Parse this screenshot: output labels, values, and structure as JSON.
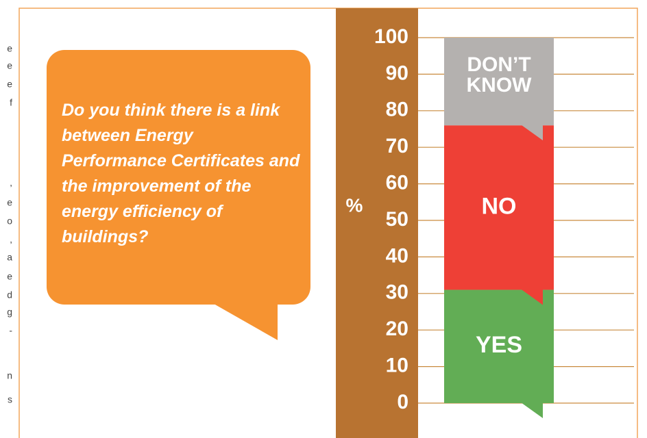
{
  "chart_data": {
    "type": "stacked-bar",
    "title": "Do you think there is a link between Energy Performance Certificates and the improvement of the energy efficiency of buildings?",
    "ylabel": "%",
    "series": [
      {
        "name": "YES",
        "color": "#62ad55",
        "values": [
          31
        ]
      },
      {
        "name": "NO",
        "color": "#ee4036",
        "values": [
          45
        ]
      },
      {
        "name": "DON’T KNOW",
        "color": "#b4b1af",
        "values": [
          24
        ]
      }
    ],
    "ylim": [
      0,
      100
    ],
    "yticks": [
      0,
      10,
      20,
      30,
      40,
      50,
      60,
      70,
      80,
      90,
      100
    ],
    "grid": true
  },
  "side_text_fragments": [
    "e",
    "e",
    "e",
    "f",
    ",",
    "e",
    "o",
    ",",
    "a",
    "e",
    "d",
    "g",
    "-",
    "n",
    "s"
  ]
}
